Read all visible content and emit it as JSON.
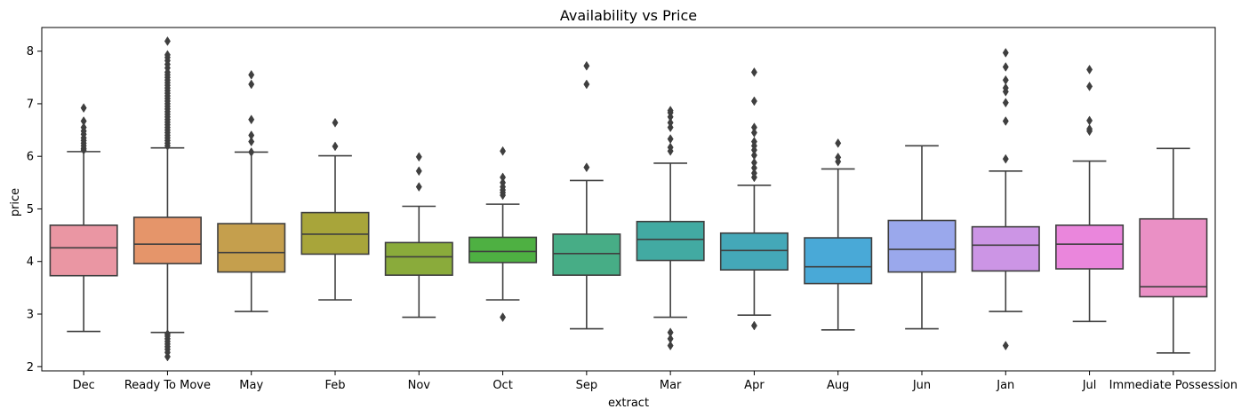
{
  "chart_data": {
    "type": "box",
    "title": "Availability vs Price",
    "xlabel": "extract",
    "ylabel": "price",
    "ylim": [
      1.92,
      8.45
    ],
    "yticks": [
      2,
      3,
      4,
      5,
      6,
      7,
      8
    ],
    "ytick_labels": [
      "2",
      "3",
      "4",
      "5",
      "6",
      "7",
      "8"
    ],
    "grid": false,
    "legend": "none",
    "categories": [
      "Dec",
      "Ready To Move",
      "May",
      "Feb",
      "Nov",
      "Oct",
      "Sep",
      "Mar",
      "Apr",
      "Aug",
      "Jun",
      "Jan",
      "Jul",
      "Immediate Possession"
    ],
    "colors": [
      "#ea96a3",
      "#e5956a",
      "#c59f4d",
      "#a8a53a",
      "#8aab3b",
      "#4eb042",
      "#47ad86",
      "#42aaa2",
      "#44a8b8",
      "#49a9d7",
      "#9aa8ec",
      "#cc95e5",
      "#ea86dc",
      "#ea90c5"
    ],
    "stroke_color": "#3f3f3f",
    "boxes": [
      {
        "category": "Dec",
        "whislo": 2.67,
        "q1": 3.73,
        "med": 4.26,
        "q3": 4.69,
        "whishi": 6.09,
        "fliers": [
          6.12,
          6.15,
          6.2,
          6.25,
          6.3,
          6.35,
          6.42,
          6.48,
          6.55,
          6.67,
          6.92
        ]
      },
      {
        "category": "Ready To Move",
        "whislo": 2.65,
        "q1": 3.96,
        "med": 4.33,
        "q3": 4.84,
        "whishi": 6.16,
        "fliers": [
          2.19,
          2.27,
          2.33,
          2.38,
          2.43,
          2.48,
          2.53,
          2.58,
          2.62,
          6.2,
          6.25,
          6.3,
          6.35,
          6.4,
          6.45,
          6.5,
          6.55,
          6.6,
          6.65,
          6.7,
          6.75,
          6.8,
          6.85,
          6.9,
          6.95,
          7.0,
          7.05,
          7.1,
          7.15,
          7.2,
          7.25,
          7.3,
          7.35,
          7.4,
          7.45,
          7.5,
          7.55,
          7.6,
          7.68,
          7.75,
          7.82,
          7.88,
          7.93,
          8.19
        ]
      },
      {
        "category": "May",
        "whislo": 3.05,
        "q1": 3.8,
        "med": 4.17,
        "q3": 4.72,
        "whishi": 6.08,
        "fliers": [
          6.08,
          6.28,
          6.4,
          6.7,
          7.37,
          7.55
        ]
      },
      {
        "category": "Feb",
        "whislo": 3.27,
        "q1": 4.14,
        "med": 4.52,
        "q3": 4.93,
        "whishi": 6.01,
        "fliers": [
          6.19,
          6.64
        ]
      },
      {
        "category": "Nov",
        "whislo": 2.94,
        "q1": 3.74,
        "med": 4.09,
        "q3": 4.36,
        "whishi": 5.05,
        "fliers": [
          5.42,
          5.72,
          5.99
        ]
      },
      {
        "category": "Oct",
        "whislo": 3.27,
        "q1": 3.98,
        "med": 4.19,
        "q3": 4.46,
        "whishi": 5.09,
        "fliers": [
          2.94,
          5.26,
          5.31,
          5.36,
          5.42,
          5.5,
          5.6,
          6.1
        ]
      },
      {
        "category": "Sep",
        "whislo": 2.72,
        "q1": 3.74,
        "med": 4.15,
        "q3": 4.52,
        "whishi": 5.54,
        "fliers": [
          5.79,
          7.37,
          7.72
        ]
      },
      {
        "category": "Mar",
        "whislo": 2.94,
        "q1": 4.02,
        "med": 4.42,
        "q3": 4.76,
        "whishi": 5.87,
        "fliers": [
          2.4,
          2.53,
          2.65,
          6.1,
          6.17,
          6.33,
          6.55,
          6.64,
          6.75,
          6.83,
          6.87
        ]
      },
      {
        "category": "Apr",
        "whislo": 2.98,
        "q1": 3.84,
        "med": 4.21,
        "q3": 4.54,
        "whishi": 5.45,
        "fliers": [
          2.78,
          5.6,
          5.68,
          5.78,
          5.88,
          6.02,
          6.12,
          6.2,
          6.28,
          6.45,
          6.55,
          7.05,
          7.6
        ]
      },
      {
        "category": "Aug",
        "whislo": 2.7,
        "q1": 3.58,
        "med": 3.9,
        "q3": 4.45,
        "whishi": 5.76,
        "fliers": [
          5.9,
          5.98,
          6.25
        ]
      },
      {
        "category": "Jun",
        "whislo": 2.72,
        "q1": 3.8,
        "med": 4.23,
        "q3": 4.78,
        "whishi": 6.2,
        "fliers": []
      },
      {
        "category": "Jan",
        "whislo": 3.05,
        "q1": 3.82,
        "med": 4.31,
        "q3": 4.66,
        "whishi": 5.72,
        "fliers": [
          2.4,
          5.95,
          6.67,
          7.02,
          7.23,
          7.3,
          7.45,
          7.7,
          7.97
        ]
      },
      {
        "category": "Jul",
        "whislo": 2.86,
        "q1": 3.86,
        "med": 4.33,
        "q3": 4.69,
        "whishi": 5.91,
        "fliers": [
          6.48,
          6.52,
          6.68,
          7.33,
          7.65
        ]
      },
      {
        "category": "Immediate Possession",
        "whislo": 2.26,
        "q1": 3.33,
        "med": 3.52,
        "q3": 4.81,
        "whishi": 6.15,
        "fliers": []
      }
    ]
  }
}
